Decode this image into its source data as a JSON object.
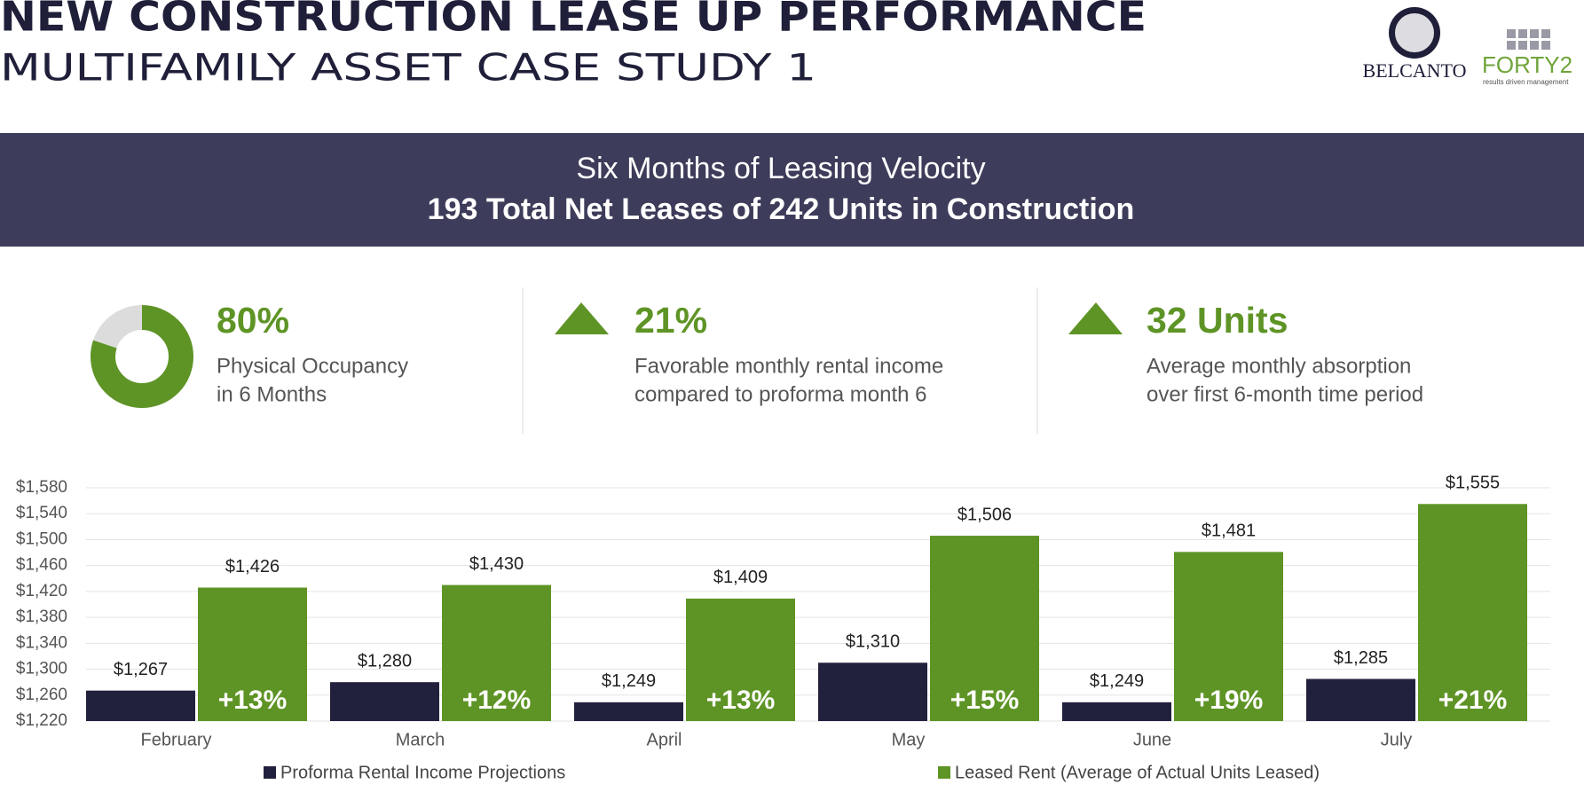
{
  "header": {
    "title": "NEW CONSTRUCTION LEASE UP PERFORMANCE",
    "subtitle": "MULTIFAMILY ASSET CASE STUDY 1"
  },
  "logos": {
    "first": "BELCANTO",
    "second": "FORTY2",
    "second_tagline": "results driven management"
  },
  "banner": {
    "line1": "Six Months of Leasing Velocity",
    "line2": "193 Total Net Leases of 242 Units in Construction"
  },
  "stats": [
    {
      "value": 80,
      "value_label": "80%",
      "text": [
        "Physical Occupancy",
        "in 6 Months"
      ]
    },
    {
      "value_label": "21%",
      "text": [
        "Favorable monthly rental income",
        "compared to proforma month 6"
      ]
    },
    {
      "value_label": "32 Units",
      "text": [
        "Average monthly absorption",
        "over first 6-month time period"
      ]
    }
  ],
  "chart_data": {
    "type": "bar",
    "categories": [
      "February",
      "March",
      "April",
      "May",
      "June",
      "July"
    ],
    "series": [
      {
        "name": "Proforma Rental Income Projections",
        "color": "#22213d",
        "values": [
          1267,
          1280,
          1249,
          1310,
          1249,
          1285
        ],
        "value_labels": [
          "$1,267",
          "$1,280",
          "$1,249",
          "$1,310",
          "$1,249",
          "$1,285"
        ]
      },
      {
        "name": "Leased Rent (Average of Actual Units Leased)",
        "color": "#5e9425",
        "values": [
          1426,
          1430,
          1409,
          1506,
          1481,
          1555
        ],
        "value_labels": [
          "$1,426",
          "$1,430",
          "$1,409",
          "$1,506",
          "$1,481",
          "$1,555"
        ]
      }
    ],
    "annotations": [
      "+13%",
      "+12%",
      "+13%",
      "+15%",
      "+19%",
      "+21%"
    ],
    "ylim": [
      1220,
      1580
    ],
    "yticks": [
      {
        "value": 1220,
        "label": "$1,220"
      },
      {
        "value": 1260,
        "label": "$1,260"
      },
      {
        "value": 1300,
        "label": "$1,300"
      },
      {
        "value": 1340,
        "label": "$1,340"
      },
      {
        "value": 1380,
        "label": "$1,380"
      },
      {
        "value": 1420,
        "label": "$1,420"
      },
      {
        "value": 1460,
        "label": "$1,460"
      },
      {
        "value": 1500,
        "label": "$1,500"
      },
      {
        "value": 1540,
        "label": "$1,540"
      },
      {
        "value": 1580,
        "label": "$1,580"
      }
    ],
    "grid": true
  }
}
